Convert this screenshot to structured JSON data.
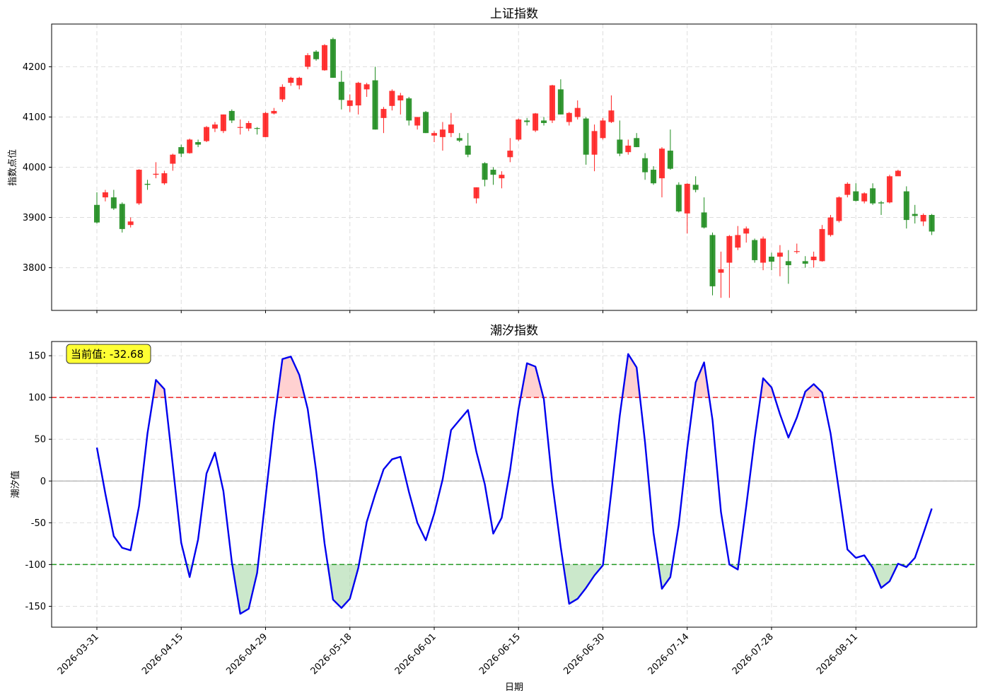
{
  "chart_data": [
    {
      "type": "candlestick",
      "title": "上证指数",
      "ylabel": "指数点位",
      "xlabel": "",
      "ylim": [
        3715,
        4285
      ],
      "yticks": [
        3800,
        3900,
        4000,
        4100,
        4200
      ],
      "grid": true,
      "up_color": "#ff2020",
      "down_color": "#1e8c1e",
      "ohlc": [
        [
          3925,
          3950,
          3888,
          3890
        ],
        [
          3940,
          3955,
          3932,
          3950
        ],
        [
          3940,
          3955,
          3915,
          3918
        ],
        [
          3927,
          3930,
          3870,
          3877
        ],
        [
          3885,
          3900,
          3880,
          3892
        ],
        [
          3928,
          3996,
          3925,
          3995
        ],
        [
          3967,
          3975,
          3955,
          3965
        ],
        [
          3985,
          4010,
          3978,
          3987
        ],
        [
          3968,
          3993,
          3965,
          3988
        ],
        [
          4007,
          4027,
          3993,
          4025
        ],
        [
          4040,
          4045,
          4020,
          4027
        ],
        [
          4028,
          4057,
          4027,
          4055
        ],
        [
          4050,
          4055,
          4040,
          4045
        ],
        [
          4052,
          4082,
          4050,
          4080
        ],
        [
          4077,
          4090,
          4070,
          4085
        ],
        [
          4072,
          4105,
          4068,
          4105
        ],
        [
          4112,
          4115,
          4088,
          4093
        ],
        [
          4080,
          4095,
          4065,
          4080
        ],
        [
          4077,
          4092,
          4072,
          4088
        ],
        [
          4078,
          4080,
          4065,
          4077
        ],
        [
          4060,
          4110,
          4060,
          4108
        ],
        [
          4107,
          4118,
          4105,
          4112
        ],
        [
          4135,
          4165,
          4130,
          4160
        ],
        [
          4168,
          4180,
          4162,
          4178
        ],
        [
          4163,
          4180,
          4155,
          4178
        ],
        [
          4200,
          4227,
          4195,
          4223
        ],
        [
          4230,
          4233,
          4212,
          4215
        ],
        [
          4193,
          4245,
          4192,
          4243
        ],
        [
          4255,
          4258,
          4178,
          4178
        ],
        [
          4170,
          4192,
          4115,
          4134
        ],
        [
          4122,
          4145,
          4110,
          4133
        ],
        [
          4123,
          4170,
          4105,
          4168
        ],
        [
          4155,
          4168,
          4140,
          4165
        ],
        [
          4173,
          4200,
          4075,
          4075
        ],
        [
          4098,
          4120,
          4068,
          4116
        ],
        [
          4122,
          4155,
          4113,
          4152
        ],
        [
          4133,
          4148,
          4105,
          4143
        ],
        [
          4137,
          4140,
          4083,
          4093
        ],
        [
          4083,
          4100,
          4075,
          4100
        ],
        [
          4110,
          4112,
          4068,
          4068
        ],
        [
          4063,
          4072,
          4050,
          4068
        ],
        [
          4060,
          4090,
          4033,
          4075
        ],
        [
          4068,
          4108,
          4060,
          4085
        ],
        [
          4058,
          4068,
          4050,
          4053
        ],
        [
          4043,
          4068,
          4020,
          4025
        ],
        [
          3938,
          3960,
          3928,
          3960
        ],
        [
          4008,
          4010,
          3962,
          3975
        ],
        [
          3995,
          4000,
          3965,
          3985
        ],
        [
          3978,
          3992,
          3958,
          3985
        ],
        [
          4020,
          4058,
          4010,
          4033
        ],
        [
          4055,
          4097,
          4052,
          4095
        ],
        [
          4093,
          4098,
          4083,
          4090
        ],
        [
          4073,
          4108,
          4070,
          4107
        ],
        [
          4093,
          4100,
          4083,
          4088
        ],
        [
          4093,
          4164,
          4088,
          4163
        ],
        [
          4155,
          4175,
          4105,
          4105
        ],
        [
          4090,
          4110,
          4083,
          4108
        ],
        [
          4100,
          4133,
          4095,
          4118
        ],
        [
          4097,
          4100,
          4005,
          4025
        ],
        [
          4025,
          4085,
          3992,
          4072
        ],
        [
          4058,
          4098,
          4055,
          4093
        ],
        [
          4090,
          4143,
          4088,
          4113
        ],
        [
          4055,
          4093,
          4022,
          4027
        ],
        [
          4030,
          4055,
          4025,
          4043
        ],
        [
          4058,
          4068,
          4040,
          4040
        ],
        [
          4018,
          4028,
          3975,
          3990
        ],
        [
          3995,
          4002,
          3965,
          3968
        ],
        [
          3978,
          4040,
          3940,
          4037
        ],
        [
          4033,
          4075,
          3995,
          3997
        ],
        [
          3965,
          3970,
          3910,
          3912
        ],
        [
          3908,
          3968,
          3868,
          3967
        ],
        [
          3965,
          3982,
          3950,
          3955
        ],
        [
          3910,
          3940,
          3878,
          3880
        ],
        [
          3865,
          3870,
          3745,
          3763
        ],
        [
          3790,
          3832,
          3740,
          3797
        ],
        [
          3810,
          3865,
          3740,
          3863
        ],
        [
          3840,
          3883,
          3835,
          3865
        ],
        [
          3868,
          3882,
          3850,
          3878
        ],
        [
          3855,
          3858,
          3810,
          3815
        ],
        [
          3810,
          3862,
          3795,
          3858
        ],
        [
          3822,
          3830,
          3795,
          3812
        ],
        [
          3822,
          3845,
          3783,
          3830
        ],
        [
          3813,
          3835,
          3768,
          3805
        ],
        [
          3833,
          3848,
          3828,
          3833
        ],
        [
          3813,
          3823,
          3800,
          3808
        ],
        [
          3815,
          3832,
          3800,
          3822
        ],
        [
          3813,
          3885,
          3812,
          3877
        ],
        [
          3865,
          3905,
          3862,
          3900
        ],
        [
          3893,
          3942,
          3890,
          3940
        ],
        [
          3945,
          3970,
          3940,
          3967
        ],
        [
          3952,
          3968,
          3932,
          3933
        ],
        [
          3932,
          3950,
          3928,
          3948
        ],
        [
          3958,
          3968,
          3925,
          3928
        ],
        [
          3930,
          3933,
          3905,
          3928
        ],
        [
          3930,
          3985,
          3928,
          3982
        ],
        [
          3982,
          3995,
          3985,
          3993
        ],
        [
          3952,
          3962,
          3878,
          3895
        ],
        [
          3907,
          3925,
          3888,
          3903
        ],
        [
          3892,
          3908,
          3883,
          3905
        ],
        [
          3905,
          3907,
          3865,
          3872
        ]
      ]
    },
    {
      "type": "line",
      "title": "潮汐指数",
      "ylabel": "潮汐值",
      "xlabel": "日期",
      "ylim": [
        -175,
        167
      ],
      "yticks": [
        -150,
        -100,
        -50,
        0,
        50,
        100,
        150
      ],
      "grid": true,
      "series": [
        {
          "name": "",
          "color": "#0000ee",
          "values": [
            40,
            -15,
            -66,
            -80,
            -83,
            -30,
            57,
            121,
            110,
            19,
            -74,
            -115,
            -70,
            9,
            34,
            -12,
            -97,
            -159,
            -153,
            -110,
            -20,
            70,
            146,
            149,
            127,
            86,
            12,
            -75,
            -142,
            -152,
            -141,
            -104,
            -49,
            -16,
            14,
            26,
            29,
            -13,
            -50,
            -71,
            -39,
            2,
            61,
            73,
            85,
            35,
            -4,
            -63,
            -44,
            13,
            86,
            141,
            137,
            98,
            -2,
            -79,
            -147,
            -141,
            -128,
            -113,
            -101,
            -13,
            78,
            152,
            136,
            46,
            -62,
            -129,
            -115,
            -52,
            39,
            118,
            142,
            73,
            -37,
            -100,
            -106,
            -30,
            51,
            123,
            112,
            80,
            52,
            76,
            107,
            116,
            106,
            57,
            -12,
            -82,
            -92,
            -89,
            -104,
            -128,
            -120,
            -99,
            -103,
            -92,
            -63,
            -33
          ]
        }
      ],
      "thresholds": [
        {
          "value": 100,
          "color": "#ee2222",
          "fill": "#ffb3b3"
        },
        {
          "value": -100,
          "color": "#229922",
          "fill": "#a8d8a8"
        },
        {
          "value": 0,
          "color": "#9e9e9e"
        }
      ],
      "annotation": "当前值: -32.68"
    }
  ],
  "x_axis": {
    "n_points": 100,
    "tick_indices": [
      0,
      10,
      20,
      30,
      40,
      50,
      60,
      70,
      80,
      90
    ],
    "tick_labels": [
      "2026-03-31",
      "2026-04-15",
      "2026-04-29",
      "2026-05-18",
      "2026-06-01",
      "2026-06-15",
      "2026-06-30",
      "2026-07-14",
      "2026-07-28",
      "2026-08-11"
    ]
  }
}
